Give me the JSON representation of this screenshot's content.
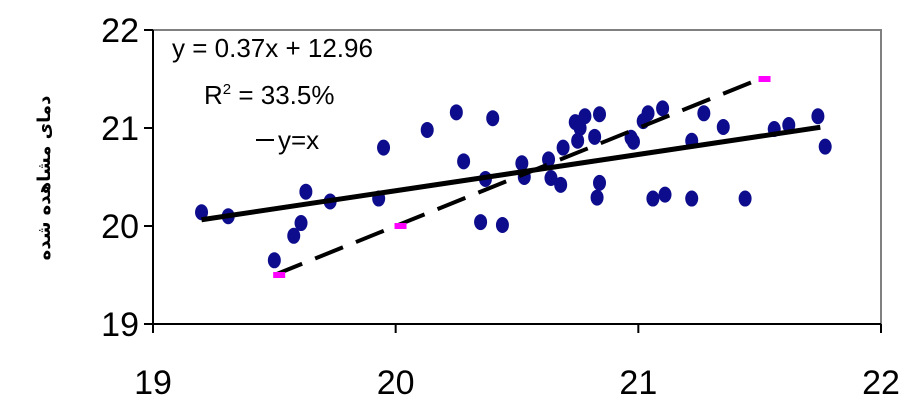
{
  "chart_data": {
    "type": "scatter",
    "xlim": [
      19,
      22
    ],
    "ylim": [
      19,
      22
    ],
    "x_ticks": [
      "19",
      "20",
      "21",
      "22"
    ],
    "y_ticks": [
      "19",
      "20",
      "21",
      "22"
    ],
    "xlabel": "",
    "ylabel": "دمای مشاهده شده",
    "grid": false,
    "annotations": {
      "equation": "y = 0.37x + 12.96",
      "r2_prefix": "R",
      "r2_sup": "2",
      "r2_value": " = 33.5%",
      "identity_legend": "y=x"
    },
    "points": [
      [
        19.2,
        20.14
      ],
      [
        19.31,
        20.1
      ],
      [
        19.5,
        19.65
      ],
      [
        19.58,
        19.9
      ],
      [
        19.61,
        20.03
      ],
      [
        19.63,
        20.35
      ],
      [
        19.73,
        20.25
      ],
      [
        19.93,
        20.28
      ],
      [
        19.95,
        20.8
      ],
      [
        20.13,
        20.98
      ],
      [
        20.25,
        21.16
      ],
      [
        20.28,
        20.66
      ],
      [
        20.35,
        20.04
      ],
      [
        20.37,
        20.48
      ],
      [
        20.4,
        21.1
      ],
      [
        20.44,
        20.01
      ],
      [
        20.52,
        20.64
      ],
      [
        20.53,
        20.5
      ],
      [
        20.63,
        20.68
      ],
      [
        20.64,
        20.49
      ],
      [
        20.68,
        20.42
      ],
      [
        20.69,
        20.8
      ],
      [
        20.74,
        21.06
      ],
      [
        20.75,
        20.87
      ],
      [
        20.76,
        21.0
      ],
      [
        20.78,
        21.12
      ],
      [
        20.82,
        20.91
      ],
      [
        20.83,
        20.29
      ],
      [
        20.84,
        21.14
      ],
      [
        20.84,
        20.44
      ],
      [
        20.97,
        20.9
      ],
      [
        20.98,
        20.86
      ],
      [
        21.02,
        21.07
      ],
      [
        21.04,
        21.15
      ],
      [
        21.06,
        20.28
      ],
      [
        21.1,
        21.2
      ],
      [
        21.11,
        20.32
      ],
      [
        21.22,
        20.87
      ],
      [
        21.22,
        20.28
      ],
      [
        21.27,
        21.15
      ],
      [
        21.35,
        21.01
      ],
      [
        21.44,
        20.28
      ],
      [
        21.56,
        20.99
      ],
      [
        21.62,
        21.03
      ],
      [
        21.74,
        21.12
      ],
      [
        21.77,
        20.81
      ]
    ],
    "regression": {
      "slope": 0.37,
      "intercept": 12.96,
      "x_range": [
        19.2,
        21.75
      ]
    },
    "identity_line": {
      "x_range": [
        19.5,
        21.5
      ]
    },
    "identity_markers": [
      [
        19.52,
        19.5
      ],
      [
        20.02,
        20.0
      ],
      [
        21.52,
        21.5
      ]
    ],
    "colors": {
      "points": "#0c0c8c",
      "regression": "#000000",
      "identity": "#000000",
      "markers": "#ff00ff",
      "frame": "#808080",
      "axis": "#000000"
    }
  }
}
